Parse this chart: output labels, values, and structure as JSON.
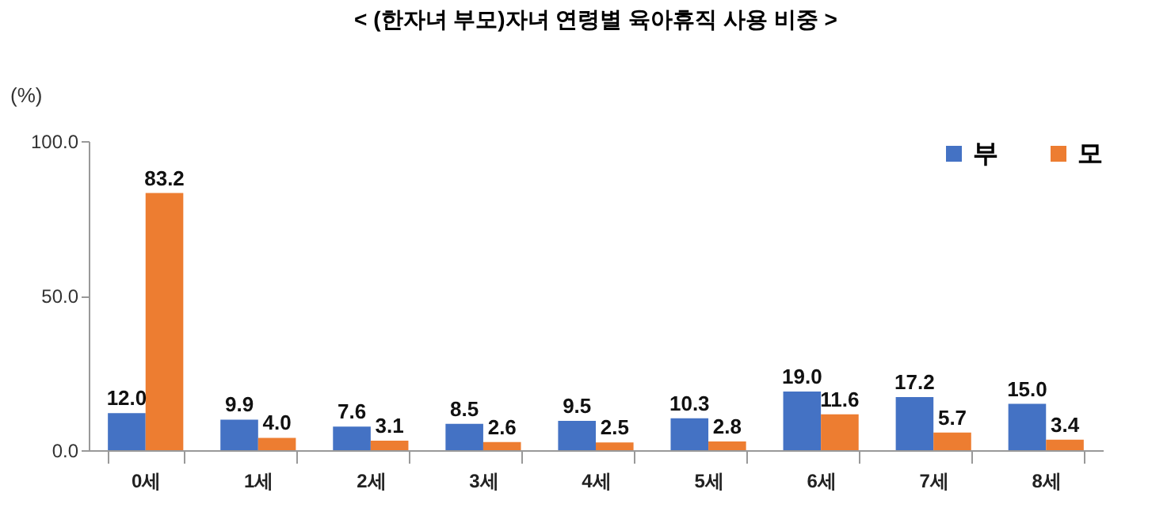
{
  "chart_data": {
    "type": "bar",
    "title": "< (한자녀 부모)자녀 연령별 육아휴직 사용 비중 >",
    "ylabel": "(%)",
    "categories": [
      "0세",
      "1세",
      "2세",
      "3세",
      "4세",
      "5세",
      "6세",
      "7세",
      "8세"
    ],
    "series": [
      {
        "name": "부",
        "color": "#4472c4",
        "values": [
          12.0,
          9.9,
          7.6,
          8.5,
          9.5,
          10.3,
          19.0,
          17.2,
          15.0
        ],
        "value_labels": [
          "12.0",
          "9.9",
          "7.6",
          "8.5",
          "9.5",
          "10.3",
          "19.0",
          "17.2",
          "15.0"
        ]
      },
      {
        "name": "모",
        "color": "#ed7d31",
        "values": [
          83.2,
          4.0,
          3.1,
          2.6,
          2.5,
          2.8,
          11.6,
          5.7,
          3.4
        ],
        "value_labels": [
          "83.2",
          "4.0",
          "3.1",
          "2.6",
          "2.5",
          "2.8",
          "11.6",
          "5.7",
          "3.4"
        ]
      }
    ],
    "ylim": [
      0,
      100
    ],
    "yticks": [
      {
        "value": 0,
        "label": "0.0"
      },
      {
        "value": 50,
        "label": "50.0"
      },
      {
        "value": 100,
        "label": "100.0"
      }
    ],
    "grid": false,
    "legend": "top right"
  }
}
